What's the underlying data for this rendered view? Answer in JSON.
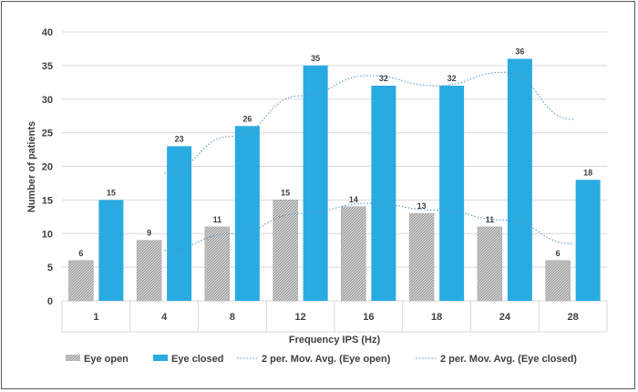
{
  "chart_data": {
    "type": "bar",
    "title": "",
    "xlabel": "Frequency IPS (Hz)",
    "ylabel": "Number of patients",
    "categories": [
      "1",
      "4",
      "8",
      "12",
      "16",
      "18",
      "24",
      "28"
    ],
    "series": [
      {
        "name": "Eye open",
        "values": [
          6,
          9,
          11,
          15,
          14,
          13,
          11,
          6
        ],
        "color": "#bfbfbf",
        "pattern": "diagonal-hatch"
      },
      {
        "name": "Eye closed",
        "values": [
          15,
          23,
          26,
          35,
          32,
          32,
          36,
          18
        ],
        "color": "#29abe2"
      }
    ],
    "trendlines": [
      {
        "name": "2 per. Mov. Avg. (Eye open)",
        "type": "moving-average",
        "period": 2,
        "of_series": "Eye open",
        "color": "#4a90c8",
        "style": "dotted"
      },
      {
        "name": "2 per. Mov. Avg. (Eye closed)",
        "type": "moving-average",
        "period": 2,
        "of_series": "Eye closed",
        "color": "#4a90c8",
        "style": "dotted"
      }
    ],
    "ylim": [
      0,
      40
    ],
    "yticks": [
      0,
      5,
      10,
      15,
      20,
      25,
      30,
      35,
      40
    ],
    "grid": true,
    "data_labels": true,
    "legend_position": "bottom"
  }
}
